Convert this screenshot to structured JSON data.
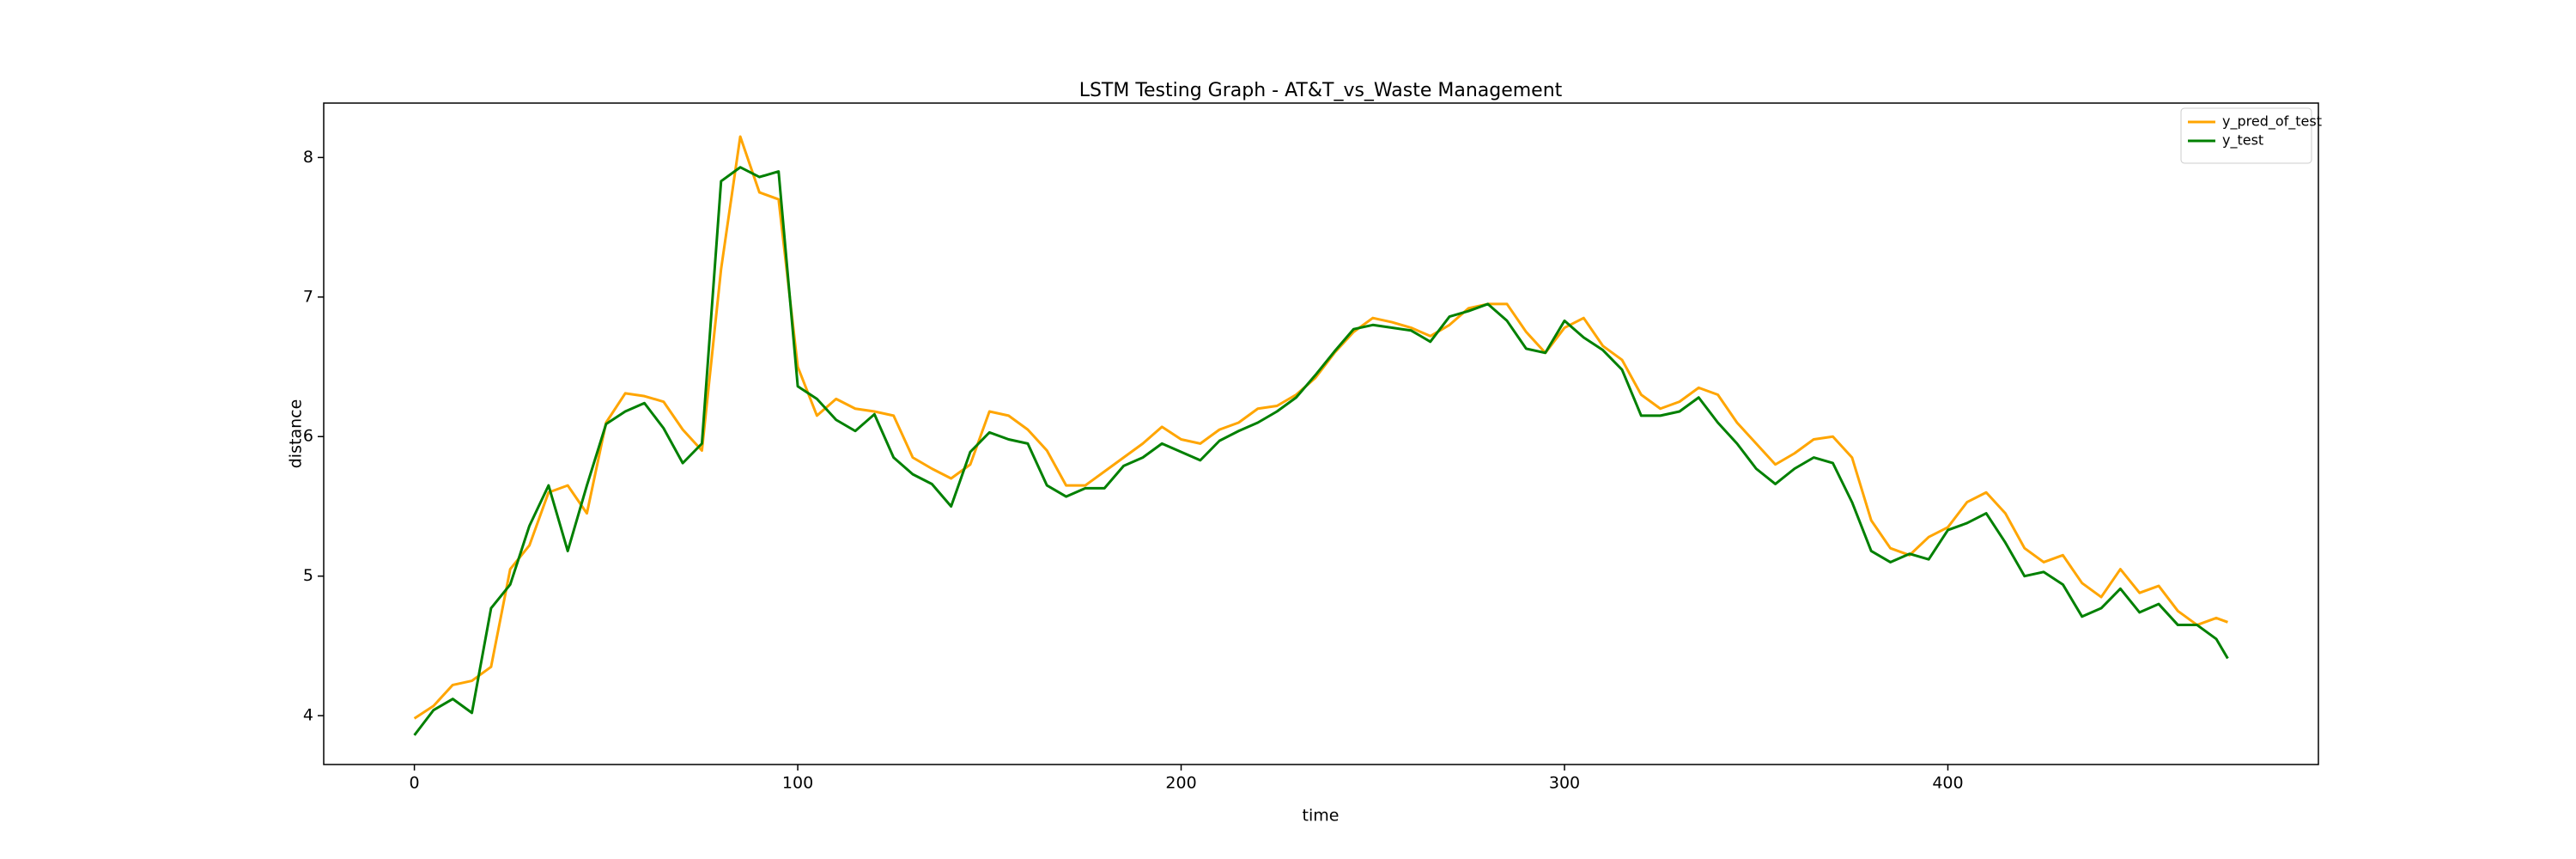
{
  "chart_data": {
    "type": "line",
    "title": "LSTM Testing Graph - AT&T_vs_Waste Management",
    "xlabel": "time",
    "ylabel": "distance",
    "x": [
      0,
      5,
      10,
      15,
      20,
      25,
      30,
      35,
      40,
      45,
      50,
      55,
      60,
      65,
      70,
      75,
      80,
      85,
      90,
      95,
      100,
      105,
      110,
      115,
      120,
      125,
      130,
      135,
      140,
      145,
      150,
      155,
      160,
      165,
      170,
      175,
      180,
      185,
      190,
      195,
      200,
      205,
      210,
      215,
      220,
      225,
      230,
      235,
      240,
      245,
      250,
      255,
      260,
      265,
      270,
      275,
      280,
      285,
      290,
      295,
      300,
      305,
      310,
      315,
      320,
      325,
      330,
      335,
      340,
      345,
      350,
      355,
      360,
      365,
      370,
      375,
      380,
      385,
      390,
      395,
      400,
      405,
      410,
      415,
      420,
      425,
      430,
      435,
      440,
      445,
      450,
      455,
      460,
      465,
      470,
      473
    ],
    "series": [
      {
        "name": "y_pred_of_test",
        "color": "#ffa500",
        "values": [
          3.98,
          4.07,
          4.22,
          4.25,
          4.35,
          5.05,
          5.22,
          5.6,
          5.65,
          5.45,
          6.1,
          6.31,
          6.29,
          6.25,
          6.05,
          5.9,
          7.2,
          8.15,
          7.75,
          7.7,
          6.5,
          6.15,
          6.27,
          6.2,
          6.18,
          6.15,
          5.85,
          5.77,
          5.7,
          5.8,
          6.18,
          6.15,
          6.05,
          5.9,
          5.65,
          5.65,
          5.75,
          5.85,
          5.95,
          6.07,
          5.98,
          5.95,
          6.05,
          6.1,
          6.2,
          6.22,
          6.3,
          6.42,
          6.6,
          6.75,
          6.85,
          6.82,
          6.78,
          6.72,
          6.8,
          6.92,
          6.95,
          6.95,
          6.75,
          6.6,
          6.78,
          6.85,
          6.65,
          6.55,
          6.3,
          6.2,
          6.25,
          6.35,
          6.3,
          6.1,
          5.95,
          5.8,
          5.88,
          5.98,
          6.0,
          5.85,
          5.4,
          5.2,
          5.15,
          5.28,
          5.35,
          5.53,
          5.6,
          5.45,
          5.2,
          5.1,
          5.15,
          4.95,
          4.85,
          5.05,
          4.88,
          4.93,
          4.75,
          4.65,
          4.7,
          4.67
        ]
      },
      {
        "name": "y_test",
        "color": "#008000",
        "values": [
          3.86,
          4.04,
          4.12,
          4.02,
          4.77,
          4.94,
          5.36,
          5.65,
          5.18,
          5.65,
          6.09,
          6.18,
          6.24,
          6.06,
          5.81,
          5.95,
          7.83,
          7.93,
          7.86,
          7.9,
          6.36,
          6.27,
          6.12,
          6.04,
          6.16,
          5.85,
          5.73,
          5.66,
          5.5,
          5.89,
          6.03,
          5.98,
          5.95,
          5.65,
          5.57,
          5.63,
          5.63,
          5.79,
          5.85,
          5.95,
          5.89,
          5.83,
          5.97,
          6.04,
          6.1,
          6.18,
          6.28,
          6.44,
          6.61,
          6.77,
          6.8,
          6.78,
          6.76,
          6.68,
          6.86,
          6.9,
          6.95,
          6.83,
          6.63,
          6.6,
          6.83,
          6.71,
          6.62,
          6.48,
          6.15,
          6.15,
          6.18,
          6.28,
          6.1,
          5.95,
          5.77,
          5.66,
          5.77,
          5.85,
          5.81,
          5.53,
          5.18,
          5.1,
          5.16,
          5.12,
          5.33,
          5.38,
          5.45,
          5.24,
          5.0,
          5.03,
          4.94,
          4.71,
          4.77,
          4.91,
          4.74,
          4.8,
          4.65,
          4.65,
          4.55,
          4.41
        ]
      }
    ],
    "xlim": [
      -23.65,
      496.65
    ],
    "ylim": [
      3.65,
      8.39
    ],
    "xticks": [
      0,
      100,
      200,
      300,
      400
    ],
    "yticks": [
      4,
      5,
      6,
      7,
      8
    ],
    "legend": "upper right"
  }
}
